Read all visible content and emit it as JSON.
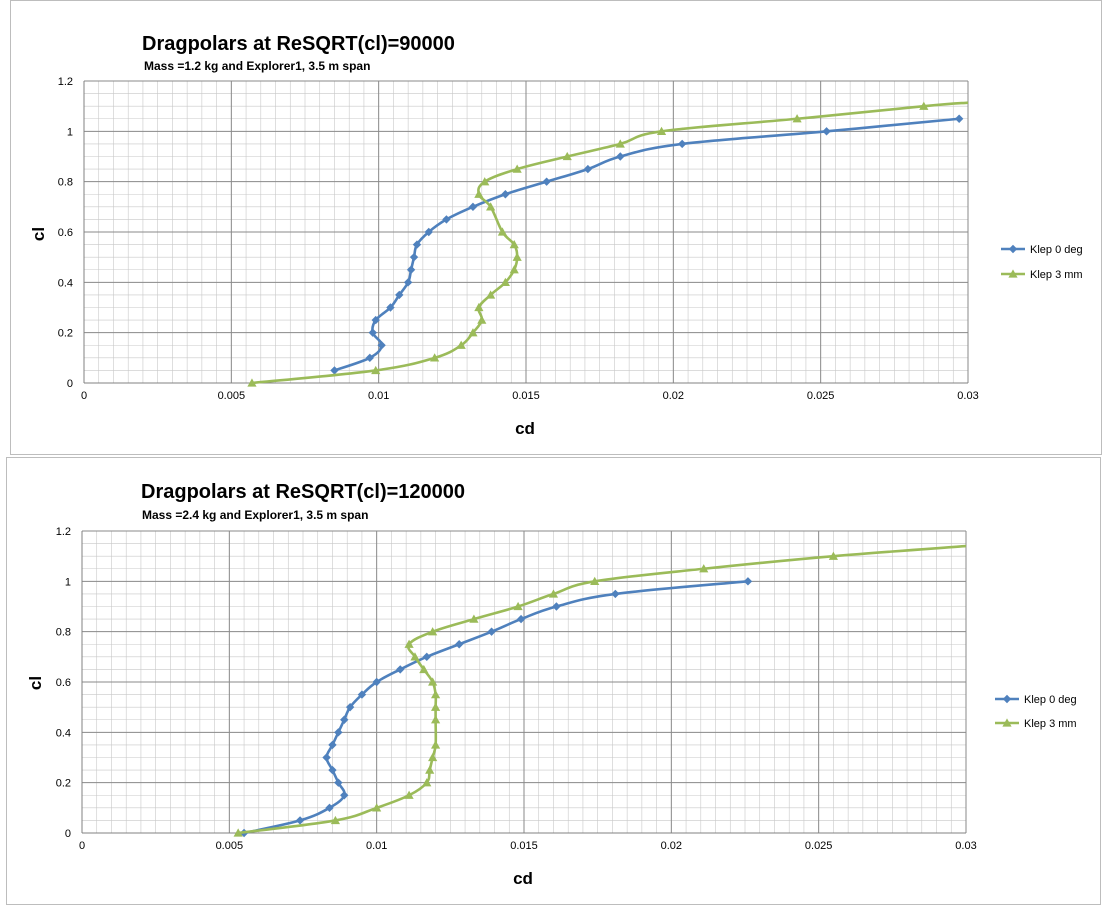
{
  "series_colors": {
    "Klep 0 deg": "#4f81bd",
    "Klep 3 mm": "#9bbb59"
  },
  "chart_data": [
    {
      "type": "scatter",
      "title": "Dragpolars at ReSQRT(cl)=90000",
      "subtitle": "Mass =1.2 kg and Explorer1, 3.5 m span",
      "xlabel": "cd",
      "ylabel": "cl",
      "xlim": [
        0,
        0.03
      ],
      "ylim": [
        0,
        1.2
      ],
      "x_ticks": [
        "0",
        "0.005",
        "0.01",
        "0.015",
        "0.02",
        "0.025",
        "0.03"
      ],
      "y_ticks": [
        "0",
        "0.2",
        "0.4",
        "0.6",
        "0.8",
        "1",
        "1.2"
      ],
      "grid": true,
      "legend": "right",
      "series": [
        {
          "name": "Klep 0 deg",
          "marker": "diamond",
          "x": [
            0.0085,
            0.0097,
            0.0101,
            0.0098,
            0.0099,
            0.0104,
            0.0107,
            0.011,
            0.0111,
            0.0112,
            0.0113,
            0.0117,
            0.0123,
            0.0132,
            0.0143,
            0.0157,
            0.0171,
            0.0182,
            0.0203,
            0.0252,
            0.0297
          ],
          "y": [
            0.05,
            0.1,
            0.15,
            0.2,
            0.25,
            0.3,
            0.35,
            0.4,
            0.45,
            0.5,
            0.55,
            0.6,
            0.65,
            0.7,
            0.75,
            0.8,
            0.85,
            0.9,
            0.95,
            1.0,
            1.05
          ]
        },
        {
          "name": "Klep 3 mm",
          "marker": "triangle",
          "x": [
            0.0057,
            0.0099,
            0.0119,
            0.0128,
            0.0132,
            0.0135,
            0.0134,
            0.0138,
            0.0143,
            0.0146,
            0.0147,
            0.0146,
            0.0142,
            0.0138,
            0.0134,
            0.0136,
            0.0147,
            0.0164,
            0.0182,
            0.0196,
            0.0242,
            0.0285
          ],
          "y": [
            0.0,
            0.05,
            0.1,
            0.15,
            0.2,
            0.25,
            0.3,
            0.35,
            0.4,
            0.45,
            0.5,
            0.55,
            0.6,
            0.7,
            0.75,
            0.8,
            0.85,
            0.9,
            0.95,
            1.0,
            1.05,
            1.1
          ],
          "x_extra": [
            0.03
          ],
          "y_extra": [
            1.114
          ]
        }
      ]
    },
    {
      "type": "scatter",
      "title": "Dragpolars at ReSQRT(cl)=120000",
      "subtitle": "Mass =2.4 kg and Explorer1, 3.5 m span",
      "xlabel": "cd",
      "ylabel": "cl",
      "xlim": [
        0,
        0.03
      ],
      "ylim": [
        0,
        1.2
      ],
      "x_ticks": [
        "0",
        "0.005",
        "0.01",
        "0.015",
        "0.02",
        "0.025",
        "0.03"
      ],
      "y_ticks": [
        "0",
        "0.2",
        "0.4",
        "0.6",
        "0.8",
        "1",
        "1.2"
      ],
      "grid": true,
      "legend": "right",
      "series": [
        {
          "name": "Klep 0 deg",
          "marker": "diamond",
          "x": [
            0.0055,
            0.0074,
            0.0084,
            0.0089,
            0.0087,
            0.0085,
            0.0083,
            0.0085,
            0.0087,
            0.0089,
            0.0091,
            0.0095,
            0.01,
            0.0108,
            0.0117,
            0.0128,
            0.0139,
            0.0149,
            0.0161,
            0.0181,
            0.0226
          ],
          "y": [
            0.0,
            0.05,
            0.1,
            0.15,
            0.2,
            0.25,
            0.3,
            0.35,
            0.4,
            0.45,
            0.5,
            0.55,
            0.6,
            0.65,
            0.7,
            0.75,
            0.8,
            0.85,
            0.9,
            0.95,
            1.0
          ]
        },
        {
          "name": "Klep 3 mm",
          "marker": "triangle",
          "x": [
            0.0053,
            0.0086,
            0.01,
            0.0111,
            0.0117,
            0.0118,
            0.0119,
            0.012,
            0.012,
            0.012,
            0.012,
            0.0119,
            0.0116,
            0.0113,
            0.0111,
            0.0119,
            0.0133,
            0.0148,
            0.016,
            0.0174,
            0.0211,
            0.0255
          ],
          "y": [
            0.0,
            0.05,
            0.1,
            0.15,
            0.2,
            0.25,
            0.3,
            0.35,
            0.45,
            0.5,
            0.55,
            0.6,
            0.65,
            0.7,
            0.75,
            0.8,
            0.85,
            0.9,
            0.95,
            1.0,
            1.05,
            1.1
          ],
          "x_extra": [
            0.03
          ],
          "y_extra": [
            1.14
          ]
        }
      ]
    }
  ]
}
